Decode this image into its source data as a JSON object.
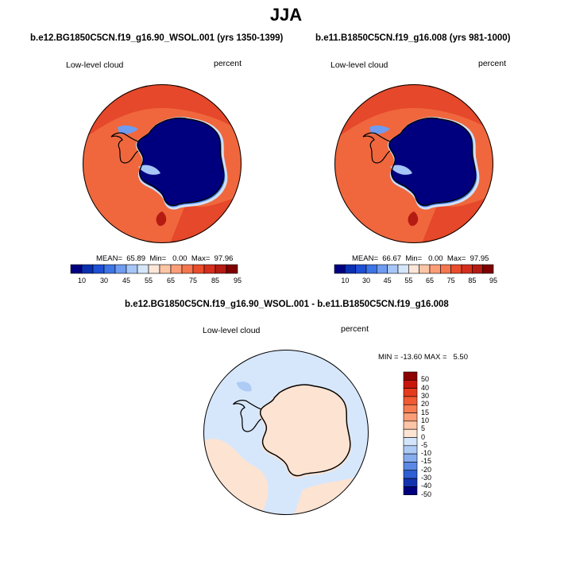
{
  "title": "JJA",
  "panels": [
    {
      "case": "b.e12.BG1850C5CN.f19_g16.90_WSOL.001 (yrs 1350-1399)",
      "field": "Low-level cloud",
      "units": "percent",
      "stats": "MEAN=  65.89  Min=   0.00  Max=  97.96",
      "colorbar": {
        "labels": [
          "10",
          "30",
          "45",
          "55",
          "65",
          "75",
          "85",
          "95"
        ],
        "colors": [
          "#00007f",
          "#0a2fb0",
          "#1e4fd4",
          "#3d74e6",
          "#6f9cf0",
          "#a7c6f8",
          "#d5e6fb",
          "#fbe6d8",
          "#fcc5a6",
          "#fb9e78",
          "#f5764f",
          "#ea4d2c",
          "#d52f1c",
          "#b51b12",
          "#7f0000"
        ]
      }
    },
    {
      "case": "b.e11.B1850C5CN.f19_g16.008 (yrs 981-1000)",
      "field": "Low-level cloud",
      "units": "percent",
      "stats": "MEAN=  66.67  Min=   0.00  Max=  97.95",
      "colorbar": {
        "labels": [
          "10",
          "30",
          "45",
          "55",
          "65",
          "75",
          "85",
          "95"
        ],
        "colors": [
          "#00007f",
          "#0a2fb0",
          "#1e4fd4",
          "#3d74e6",
          "#6f9cf0",
          "#a7c6f8",
          "#d5e6fb",
          "#fbe6d8",
          "#fcc5a6",
          "#fb9e78",
          "#f5764f",
          "#ea4d2c",
          "#d52f1c",
          "#b51b12",
          "#7f0000"
        ]
      }
    }
  ],
  "diff": {
    "title": "b.e12.BG1850C5CN.f19_g16.90_WSOL.001 - b.e11.B1850C5CN.f19_g16.008",
    "field": "Low-level cloud",
    "units": "percent",
    "stats": "MIN = -13.60 MAX =   5.50",
    "colorbar": {
      "labels": [
        "50",
        "40",
        "30",
        "20",
        "15",
        "10",
        "5",
        "0",
        "-5",
        "-10",
        "-15",
        "-20",
        "-30",
        "-40",
        "-50"
      ],
      "colors": [
        "#8c0000",
        "#c8160f",
        "#e43a1e",
        "#f15a33",
        "#f77c52",
        "#fb9e78",
        "#fcc5a6",
        "#fde3d2",
        "#d3e5fb",
        "#aecbf5",
        "#86acee",
        "#5a88e4",
        "#2f5fd4",
        "#1233b0",
        "#00007f"
      ]
    }
  },
  "colors": {
    "ocean_high": "#e5482a",
    "ocean_mid": "#f0673d",
    "ice": "#00007f",
    "coast": "#000000",
    "diff_neg": "#d7e7fb",
    "diff_pos": "#fde3d2"
  }
}
